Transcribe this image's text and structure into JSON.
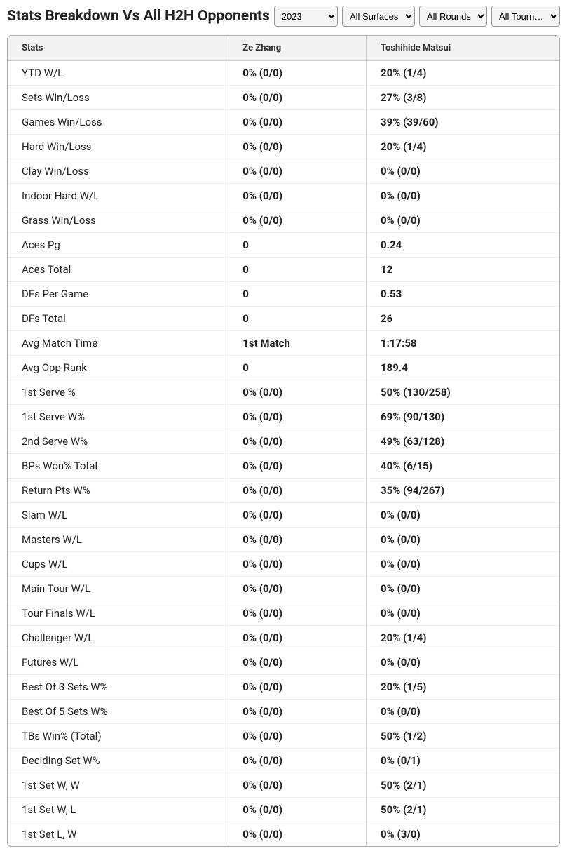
{
  "title": "Stats Breakdown Vs All H2H Opponents",
  "filters": {
    "year": "2023",
    "surface": "All Surfaces",
    "round": "All Rounds",
    "tournament": "All Tourn…"
  },
  "columns": {
    "stat": "Stats",
    "p1": "Ze Zhang",
    "p2": "Toshihide Matsui"
  },
  "rows": [
    {
      "stat": "YTD W/L",
      "p1": "0% (0/0)",
      "p2": "20% (1/4)"
    },
    {
      "stat": "Sets Win/Loss",
      "p1": "0% (0/0)",
      "p2": "27% (3/8)"
    },
    {
      "stat": "Games Win/Loss",
      "p1": "0% (0/0)",
      "p2": "39% (39/60)"
    },
    {
      "stat": "Hard Win/Loss",
      "p1": "0% (0/0)",
      "p2": "20% (1/4)"
    },
    {
      "stat": "Clay Win/Loss",
      "p1": "0% (0/0)",
      "p2": "0% (0/0)"
    },
    {
      "stat": "Indoor Hard W/L",
      "p1": "0% (0/0)",
      "p2": "0% (0/0)"
    },
    {
      "stat": "Grass Win/Loss",
      "p1": "0% (0/0)",
      "p2": "0% (0/0)"
    },
    {
      "stat": "Aces Pg",
      "p1": "0",
      "p2": "0.24"
    },
    {
      "stat": "Aces Total",
      "p1": "0",
      "p2": "12"
    },
    {
      "stat": "DFs Per Game",
      "p1": "0",
      "p2": "0.53"
    },
    {
      "stat": "DFs Total",
      "p1": "0",
      "p2": "26"
    },
    {
      "stat": "Avg Match Time",
      "p1": "1st Match",
      "p2": "1:17:58"
    },
    {
      "stat": "Avg Opp Rank",
      "p1": "0",
      "p2": "189.4"
    },
    {
      "stat": "1st Serve %",
      "p1": "0% (0/0)",
      "p2": "50% (130/258)"
    },
    {
      "stat": "1st Serve W%",
      "p1": "0% (0/0)",
      "p2": "69% (90/130)"
    },
    {
      "stat": "2nd Serve W%",
      "p1": "0% (0/0)",
      "p2": "49% (63/128)"
    },
    {
      "stat": "BPs Won% Total",
      "p1": "0% (0/0)",
      "p2": "40% (6/15)"
    },
    {
      "stat": "Return Pts W%",
      "p1": "0% (0/0)",
      "p2": "35% (94/267)"
    },
    {
      "stat": "Slam W/L",
      "p1": "0% (0/0)",
      "p2": "0% (0/0)"
    },
    {
      "stat": "Masters W/L",
      "p1": "0% (0/0)",
      "p2": "0% (0/0)"
    },
    {
      "stat": "Cups W/L",
      "p1": "0% (0/0)",
      "p2": "0% (0/0)"
    },
    {
      "stat": "Main Tour W/L",
      "p1": "0% (0/0)",
      "p2": "0% (0/0)"
    },
    {
      "stat": "Tour Finals W/L",
      "p1": "0% (0/0)",
      "p2": "0% (0/0)"
    },
    {
      "stat": "Challenger W/L",
      "p1": "0% (0/0)",
      "p2": "20% (1/4)"
    },
    {
      "stat": "Futures W/L",
      "p1": "0% (0/0)",
      "p2": "0% (0/0)"
    },
    {
      "stat": "Best Of 3 Sets W%",
      "p1": "0% (0/0)",
      "p2": "20% (1/5)"
    },
    {
      "stat": "Best Of 5 Sets W%",
      "p1": "0% (0/0)",
      "p2": "0% (0/0)"
    },
    {
      "stat": "TBs Win% (Total)",
      "p1": "0% (0/0)",
      "p2": "50% (1/2)"
    },
    {
      "stat": "Deciding Set W%",
      "p1": "0% (0/0)",
      "p2": "0% (0/1)"
    },
    {
      "stat": "1st Set W, W",
      "p1": "0% (0/0)",
      "p2": "50% (2/1)"
    },
    {
      "stat": "1st Set W, L",
      "p1": "0% (0/0)",
      "p2": "50% (2/1)"
    },
    {
      "stat": "1st Set L, W",
      "p1": "0% (0/0)",
      "p2": "0% (3/0)"
    }
  ]
}
